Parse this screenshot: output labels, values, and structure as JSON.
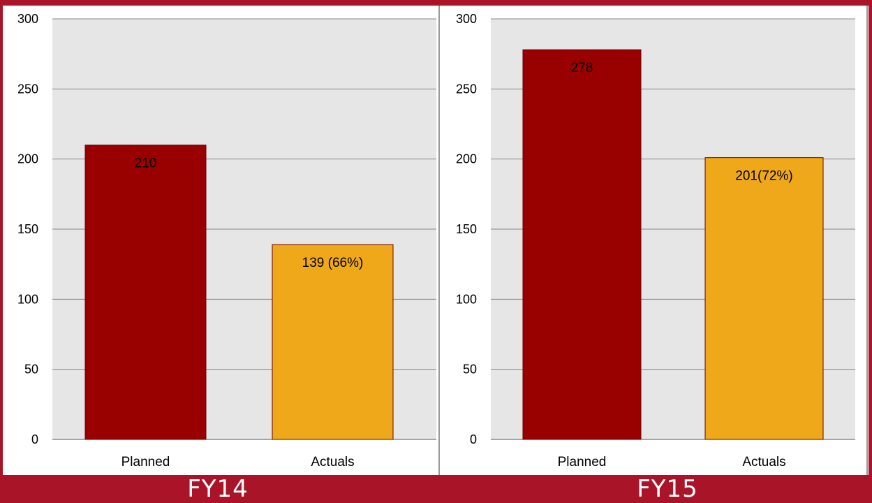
{
  "charts": [
    {
      "label": "FY14",
      "chart_data": {
        "type": "bar",
        "categories": [
          "Planned",
          "Actuals"
        ],
        "values": [
          210,
          139
        ],
        "data_labels": [
          "210",
          "139 (66%)"
        ],
        "ylim": [
          0,
          300
        ],
        "yticks": [
          0,
          50,
          100,
          150,
          200,
          250,
          300
        ],
        "grid": true,
        "legend": "none",
        "colors": [
          "#990000",
          "#eea81a"
        ]
      }
    },
    {
      "label": "FY15",
      "chart_data": {
        "type": "bar",
        "categories": [
          "Planned",
          "Actuals"
        ],
        "values": [
          278,
          201
        ],
        "data_labels": [
          "278",
          "201(72%)"
        ],
        "ylim": [
          0,
          300
        ],
        "yticks": [
          0,
          50,
          100,
          150,
          200,
          250,
          300
        ],
        "grid": true,
        "legend": "none",
        "colors": [
          "#990000",
          "#eea81a"
        ]
      }
    }
  ],
  "colors": {
    "background": "#aa1428",
    "plot_area": "#e6e6e6",
    "gridline": "#888888"
  }
}
